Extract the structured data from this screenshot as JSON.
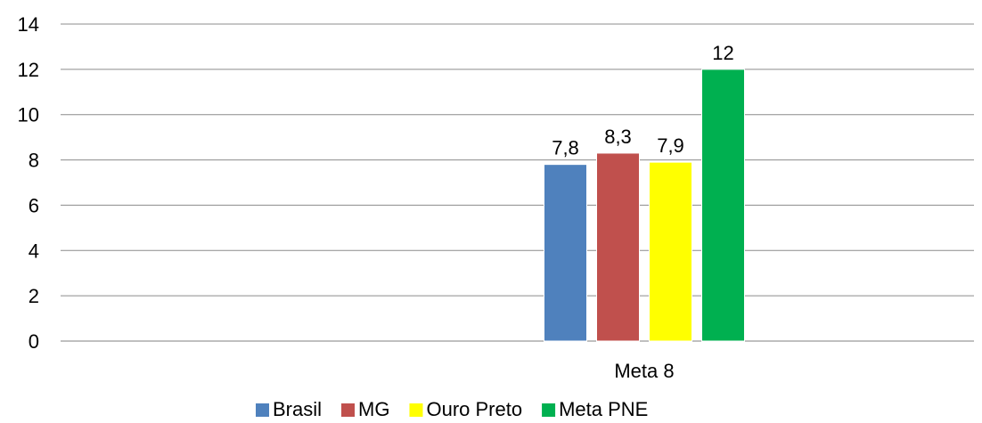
{
  "chart_data": {
    "type": "bar",
    "categories": [
      "Meta 8"
    ],
    "series": [
      {
        "name": "Brasil",
        "values": [
          7.8
        ],
        "label": "7,8",
        "color": "#4F81BD"
      },
      {
        "name": "MG",
        "values": [
          8.3
        ],
        "label": "8,3",
        "color": "#C0504D"
      },
      {
        "name": "Ouro Preto",
        "values": [
          7.9
        ],
        "label": "7,9",
        "color": "#FFFF00"
      },
      {
        "name": "Meta PNE",
        "values": [
          12
        ],
        "label": "12",
        "color": "#00B050"
      }
    ],
    "ylim": [
      0,
      14
    ],
    "yticks": [
      0,
      2,
      4,
      6,
      8,
      10,
      12,
      14
    ],
    "grid": true,
    "legend_position": "bottom",
    "title": "",
    "xlabel": "",
    "ylabel": ""
  }
}
